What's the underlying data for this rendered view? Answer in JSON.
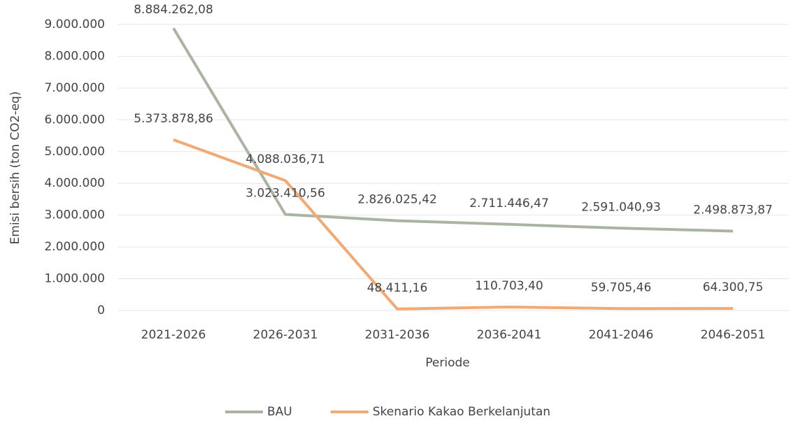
{
  "chart_data": {
    "type": "line",
    "x_label": "Periode",
    "y_label": "Emisi bersih (ton CO2-eq)",
    "categories": [
      "2021-2026",
      "2026-2031",
      "2031-2036",
      "2036-2041",
      "2041-2046",
      "2046-2051"
    ],
    "series": [
      {
        "name": "BAU",
        "color": "#aab4a3",
        "values": [
          8884262.08,
          3023410.56,
          2826025.42,
          2711446.47,
          2591040.93,
          2498873.87
        ],
        "value_labels": [
          "8.884.262,08",
          "3.023.410,56",
          "2.826.025,42",
          "2.711.446,47",
          "2.591.040,93",
          "2.498.873,87"
        ]
      },
      {
        "name": "Skenario Kakao Berkelanjutan",
        "color": "#f2aa72",
        "values": [
          5373878.86,
          4088036.71,
          48411.16,
          110703.4,
          59705.46,
          64300.75
        ],
        "value_labels": [
          "5.373.878,86",
          "4.088.036,71",
          "48.411,16",
          "110.703,40",
          "59.705,46",
          "64.300,75"
        ]
      }
    ],
    "ylim": [
      0,
      9000000
    ],
    "yticks": [
      0,
      {
        "value": 1000000,
        "label": "1.000.000"
      },
      {
        "value": 2000000,
        "label": "2.000.000"
      },
      {
        "value": 3000000,
        "label": "3.000.000"
      },
      {
        "value": 4000000,
        "label": "4.000.000"
      },
      {
        "value": 5000000,
        "label": "5.000.000"
      },
      {
        "value": 6000000,
        "label": "6.000.000"
      },
      {
        "value": 7000000,
        "label": "7.000.000"
      },
      {
        "value": 8000000,
        "label": "8.000.000"
      },
      {
        "value": 9000000,
        "label": "9.000.000"
      }
    ],
    "grid": true,
    "legend": "bottom"
  }
}
